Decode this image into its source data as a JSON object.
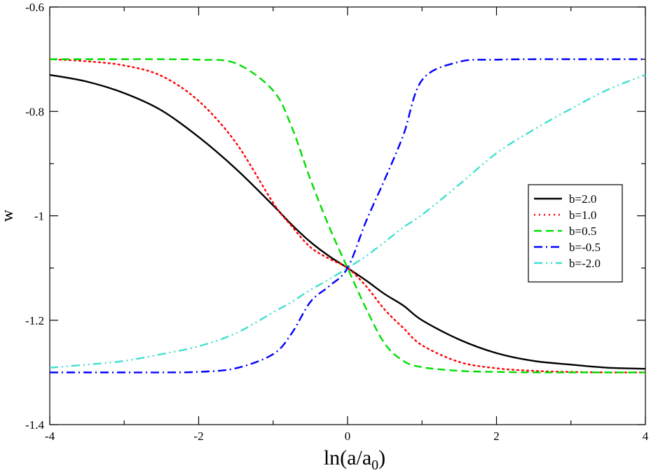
{
  "chart_data": {
    "type": "line",
    "xlabel": "ln(a/a",
    "xlabel_sub": "0",
    "xlabel_close": ")",
    "ylabel": "w",
    "xlim": [
      -4,
      4
    ],
    "ylim": [
      -1.4,
      -0.6
    ],
    "x_ticks": [
      -4,
      -2,
      0,
      2,
      4
    ],
    "x_tick_labels": [
      "-4",
      "-2",
      "0",
      "2",
      "4"
    ],
    "y_ticks": [
      -1.4,
      -1.2,
      -1.0,
      -0.8,
      -0.6
    ],
    "y_tick_labels": [
      "-1.4",
      "-1.2",
      "-1",
      "-0.8",
      "-0.6"
    ],
    "grid": false,
    "legend_position": "right",
    "x": [
      -4,
      -3.5,
      -3,
      -2.5,
      -2,
      -1.5,
      -1,
      -0.75,
      -0.5,
      -0.25,
      0,
      0.25,
      0.5,
      0.75,
      1,
      1.5,
      2,
      2.5,
      3,
      3.5,
      4
    ],
    "series": [
      {
        "name": "b=2.0",
        "color": "#000000",
        "dash": "solid",
        "values": [
          -0.73,
          -0.743,
          -0.765,
          -0.798,
          -0.849,
          -0.91,
          -0.98,
          -1.017,
          -1.05,
          -1.077,
          -1.1,
          -1.124,
          -1.15,
          -1.172,
          -1.2,
          -1.237,
          -1.263,
          -1.278,
          -1.285,
          -1.291,
          -1.293
        ]
      },
      {
        "name": "b=1.0",
        "color": "#ff0000",
        "dash": "dot",
        "values": [
          -0.7,
          -0.704,
          -0.712,
          -0.732,
          -0.78,
          -0.86,
          -0.975,
          -1.02,
          -1.06,
          -1.082,
          -1.1,
          -1.135,
          -1.18,
          -1.215,
          -1.248,
          -1.28,
          -1.292,
          -1.297,
          -1.299,
          -1.3,
          -1.3
        ]
      },
      {
        "name": "b=0.5",
        "color": "#00dd00",
        "dash": "dash",
        "values": [
          -0.7,
          -0.7,
          -0.7,
          -0.7,
          -0.701,
          -0.708,
          -0.76,
          -0.83,
          -0.93,
          -1.02,
          -1.1,
          -1.178,
          -1.245,
          -1.278,
          -1.29,
          -1.297,
          -1.299,
          -1.3,
          -1.3,
          -1.3,
          -1.3
        ]
      },
      {
        "name": "b=-0.5",
        "color": "#0000ff",
        "dash": "dashdot",
        "values": [
          -1.3,
          -1.3,
          -1.3,
          -1.3,
          -1.299,
          -1.292,
          -1.265,
          -1.225,
          -1.165,
          -1.135,
          -1.1,
          -1.01,
          -0.93,
          -0.845,
          -0.74,
          -0.705,
          -0.701,
          -0.7,
          -0.7,
          -0.7,
          -0.7
        ]
      },
      {
        "name": "b=-2.0",
        "color": "#40e0d0",
        "dash": "dashdotdot",
        "values": [
          -1.291,
          -1.285,
          -1.278,
          -1.265,
          -1.25,
          -1.225,
          -1.185,
          -1.165,
          -1.142,
          -1.122,
          -1.1,
          -1.077,
          -1.05,
          -1.022,
          -0.998,
          -0.94,
          -0.88,
          -0.835,
          -0.795,
          -0.758,
          -0.73
        ]
      }
    ]
  }
}
